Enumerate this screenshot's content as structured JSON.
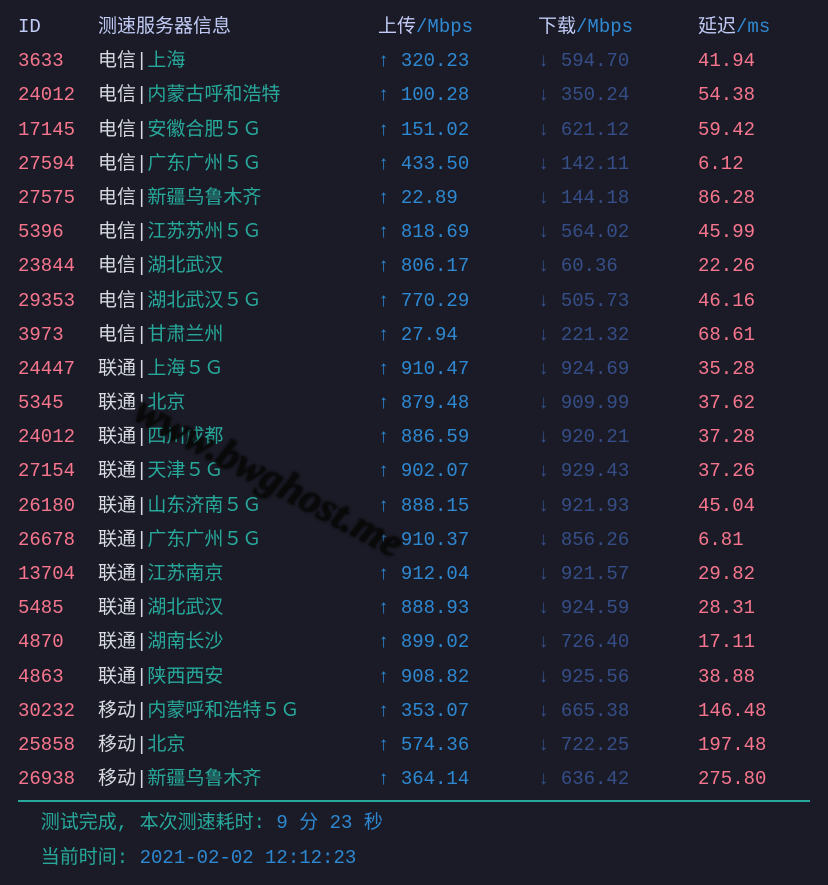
{
  "colors": {
    "background": "#1a1b26",
    "text_default": "#c0caf5",
    "id": "#f7768e",
    "isp": "#d7dae0",
    "location": "#27a89b",
    "upload": "#2e88d1",
    "download": "#354e87",
    "latency": "#f7768e",
    "rule": "#27a89b"
  },
  "header": {
    "id": "ID",
    "server_info": "测速服务器信息",
    "upload": "上传",
    "upload_unit": "/Mbps",
    "download": "下载",
    "download_unit": "/Mbps",
    "latency": "延迟",
    "latency_unit": "/ms"
  },
  "rows": [
    {
      "id": "3633",
      "isp": "电信",
      "loc": "上海",
      "up": "320.23",
      "dn": "594.70",
      "lat": "41.94"
    },
    {
      "id": "24012",
      "isp": "电信",
      "loc": "内蒙古呼和浩特",
      "up": "100.28",
      "dn": "350.24",
      "lat": "54.38"
    },
    {
      "id": "17145",
      "isp": "电信",
      "loc": "安徽合肥５Ｇ",
      "up": "151.02",
      "dn": "621.12",
      "lat": "59.42"
    },
    {
      "id": "27594",
      "isp": "电信",
      "loc": "广东广州５Ｇ",
      "up": "433.50",
      "dn": "142.11",
      "lat": "6.12"
    },
    {
      "id": "27575",
      "isp": "电信",
      "loc": "新疆乌鲁木齐",
      "up": "22.89",
      "dn": "144.18",
      "lat": "86.28"
    },
    {
      "id": "5396",
      "isp": "电信",
      "loc": "江苏苏州５Ｇ",
      "up": "818.69",
      "dn": "564.02",
      "lat": "45.99"
    },
    {
      "id": "23844",
      "isp": "电信",
      "loc": "湖北武汉",
      "up": "806.17",
      "dn": "60.36",
      "lat": "22.26"
    },
    {
      "id": "29353",
      "isp": "电信",
      "loc": "湖北武汉５Ｇ",
      "up": "770.29",
      "dn": "505.73",
      "lat": "46.16"
    },
    {
      "id": "3973",
      "isp": "电信",
      "loc": "甘肃兰州",
      "up": "27.94",
      "dn": "221.32",
      "lat": "68.61"
    },
    {
      "id": "24447",
      "isp": "联通",
      "loc": "上海５Ｇ",
      "up": "910.47",
      "dn": "924.69",
      "lat": "35.28"
    },
    {
      "id": "5345",
      "isp": "联通",
      "loc": "北京",
      "up": "879.48",
      "dn": "909.99",
      "lat": "37.62"
    },
    {
      "id": "24012",
      "isp": "联通",
      "loc": "四川成都",
      "up": "886.59",
      "dn": "920.21",
      "lat": "37.28"
    },
    {
      "id": "27154",
      "isp": "联通",
      "loc": "天津５Ｇ",
      "up": "902.07",
      "dn": "929.43",
      "lat": "37.26"
    },
    {
      "id": "26180",
      "isp": "联通",
      "loc": "山东济南５Ｇ",
      "up": "888.15",
      "dn": "921.93",
      "lat": "45.04"
    },
    {
      "id": "26678",
      "isp": "联通",
      "loc": "广东广州５Ｇ",
      "up": "910.37",
      "dn": "856.26",
      "lat": "6.81"
    },
    {
      "id": "13704",
      "isp": "联通",
      "loc": "江苏南京",
      "up": "912.04",
      "dn": "921.57",
      "lat": "29.82"
    },
    {
      "id": "5485",
      "isp": "联通",
      "loc": "湖北武汉",
      "up": "888.93",
      "dn": "924.59",
      "lat": "28.31"
    },
    {
      "id": "4870",
      "isp": "联通",
      "loc": "湖南长沙",
      "up": "899.02",
      "dn": "726.40",
      "lat": "17.11"
    },
    {
      "id": "4863",
      "isp": "联通",
      "loc": "陕西西安",
      "up": "908.82",
      "dn": "925.56",
      "lat": "38.88"
    },
    {
      "id": "30232",
      "isp": "移动",
      "loc": "内蒙呼和浩特５Ｇ",
      "up": "353.07",
      "dn": "665.38",
      "lat": "146.48"
    },
    {
      "id": "25858",
      "isp": "移动",
      "loc": "北京",
      "up": "574.36",
      "dn": "722.25",
      "lat": "197.48"
    },
    {
      "id": "26938",
      "isp": "移动",
      "loc": "新疆乌鲁木齐",
      "up": "364.14",
      "dn": "636.42",
      "lat": "275.80"
    }
  ],
  "footer": {
    "done_label": "  测试完成, 本次测速耗时: ",
    "duration": "9 分 23 秒",
    "now_label": "  当前时间: ",
    "now_value": "2021-02-02 12:12:23"
  },
  "watermark": "www.bwghost.me"
}
